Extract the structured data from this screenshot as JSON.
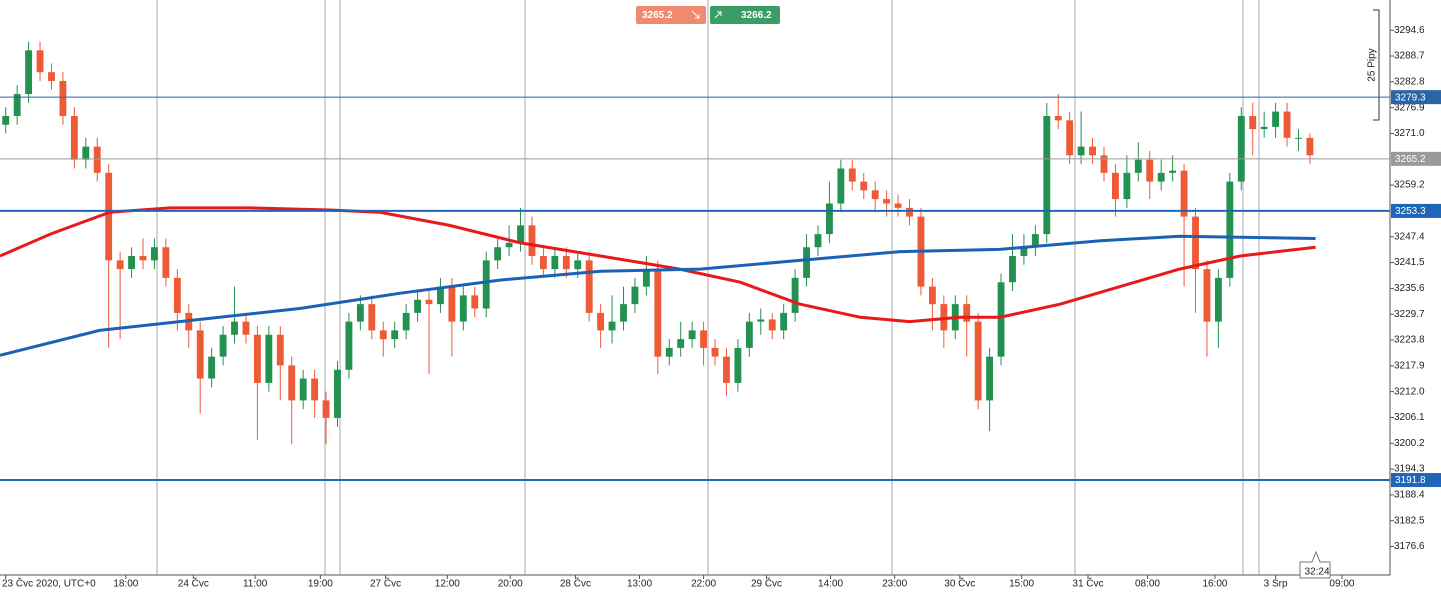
{
  "chart_data": {
    "type": "candlestick",
    "xlim": [
      -0.5,
      121
    ],
    "ylim": [
      3170.1,
      3301.5
    ],
    "up_color": "#23914f",
    "down_color": "#ee5a36",
    "yticks": [
      3294.6,
      3288.7,
      3282.8,
      3276.9,
      {
        "value": 3271.0,
        "label": "3271.0"
      },
      3259.2,
      3247.4,
      3241.5,
      3235.6,
      3229.7,
      3223.8,
      3217.9,
      {
        "value": 3212.0,
        "label": "3212.0"
      },
      3206.1,
      3200.2,
      3194.3,
      3188.4,
      3182.5,
      3176.6
    ],
    "xticks": [
      {
        "value": 0,
        "label": "23 Čvc 2020, UTC+0"
      },
      {
        "value": 10.5,
        "label": "18:00"
      },
      {
        "value": 16.4,
        "label": "24 Čvc"
      },
      {
        "value": 21.8,
        "label": "11:00"
      },
      {
        "value": 27.5,
        "label": "19:00"
      },
      {
        "value": 33.2,
        "label": "27 Čvc"
      },
      {
        "value": 38.6,
        "label": "12:00"
      },
      {
        "value": 44.1,
        "label": "20:00"
      },
      {
        "value": 49.8,
        "label": "28 Čvc"
      },
      {
        "value": 55.4,
        "label": "13:00"
      },
      {
        "value": 61.0,
        "label": "22:00"
      },
      {
        "value": 66.5,
        "label": "29 Čvc"
      },
      {
        "value": 72.1,
        "label": "14:00"
      },
      {
        "value": 77.7,
        "label": "23:00"
      },
      {
        "value": 83.4,
        "label": "30 Čvc"
      },
      {
        "value": 88.8,
        "label": "15:00"
      },
      {
        "value": 94.6,
        "label": "31 Čvc"
      },
      {
        "value": 99.8,
        "label": "08:00"
      },
      {
        "value": 105.7,
        "label": "16:00"
      },
      {
        "value": 111.0,
        "label": "3 Srp"
      },
      {
        "value": 116.8,
        "label": "09:00"
      }
    ],
    "open": [
      3273,
      3275,
      3280,
      3290,
      3285,
      3283,
      3275,
      3265,
      3268,
      3262,
      3242,
      3240,
      3243,
      3242,
      3245,
      3238,
      3230,
      3226,
      3215,
      3220,
      3225,
      3228,
      3225,
      3214,
      3225,
      3218,
      3210,
      3215,
      3210,
      3206,
      3217,
      3228,
      3232,
      3226,
      3224,
      3226,
      3230,
      3233,
      3232,
      3236,
      3228,
      3234,
      3231,
      3242,
      3245,
      3246,
      3250,
      3243,
      3240,
      3243,
      3240,
      3242,
      3230,
      3226,
      3228,
      3232,
      3236,
      3240,
      3220,
      3222,
      3224,
      3226,
      3222,
      3220,
      3214,
      3222,
      3228,
      3228.5,
      3226,
      3230,
      3238,
      3245,
      3248,
      3255,
      3263,
      3260,
      3258,
      3256,
      3255,
      3254,
      3252,
      3236,
      3232,
      3226,
      3232,
      3228,
      3210,
      3220,
      3237,
      3243,
      3245,
      3248,
      3275,
      3274,
      3266,
      3268,
      3266,
      3262,
      3256,
      3262,
      3265,
      3260,
      3262,
      3262.5,
      3252,
      3240,
      3228,
      3238,
      3260,
      3275,
      3272,
      3272.5,
      3276,
      3270,
      3270
    ],
    "high": [
      3277,
      3282,
      3292,
      3292,
      3287,
      3285,
      3277,
      3270,
      3270,
      3264,
      3244,
      3245,
      3247,
      3247,
      3247,
      3240,
      3232,
      3228,
      3222,
      3227,
      3236,
      3230,
      3227,
      3227,
      3227,
      3220,
      3217,
      3217,
      3212,
      3219,
      3230,
      3234,
      3234,
      3228,
      3228,
      3232,
      3235,
      3235,
      3238,
      3238,
      3236,
      3236,
      3244,
      3247,
      3250,
      3254,
      3252,
      3245,
      3245,
      3245,
      3244,
      3244,
      3232,
      3234,
      3236,
      3238,
      3243,
      3242,
      3224,
      3228,
      3228,
      3228,
      3224,
      3222,
      3224,
      3230,
      3231,
      3230,
      3232,
      3240,
      3248,
      3250,
      3260,
      3265,
      3265,
      3262,
      3260,
      3258,
      3257,
      3256,
      3254,
      3238,
      3234,
      3234,
      3234,
      3230,
      3222,
      3239,
      3248,
      3248,
      3250,
      3278,
      3280,
      3276,
      3276,
      3270,
      3268,
      3264,
      3266,
      3269,
      3267,
      3265,
      3266,
      3264,
      3254,
      3242,
      3240,
      3262,
      3277,
      3278,
      3276,
      3278,
      3278,
      3272,
      3271
    ],
    "low": [
      3271,
      3273,
      3278,
      3283,
      3281,
      3273,
      3263,
      3263,
      3260,
      3222,
      3224,
      3238,
      3240,
      3240,
      3236,
      3226,
      3222,
      3207,
      3213,
      3218,
      3223,
      3223,
      3201,
      3212,
      3210,
      3200,
      3208,
      3206,
      3200,
      3204,
      3215,
      3226,
      3224,
      3220,
      3222,
      3224,
      3228,
      3216,
      3230,
      3220,
      3226,
      3229,
      3229,
      3240,
      3243,
      3244,
      3241,
      3238,
      3238,
      3238,
      3238,
      3228,
      3222,
      3223,
      3226,
      3230,
      3234,
      3216,
      3218,
      3220,
      3222,
      3218,
      3218,
      3211,
      3212,
      3220,
      3225,
      3224,
      3224,
      3228,
      3236,
      3243,
      3246,
      3253,
      3258,
      3256,
      3253,
      3252,
      3252,
      3250,
      3234,
      3226,
      3222,
      3224,
      3220,
      3208,
      3203,
      3218,
      3235,
      3241,
      3243,
      3246,
      3272,
      3264,
      3264,
      3264,
      3260,
      3252,
      3254,
      3260,
      3256,
      3258,
      3260,
      3236,
      3230,
      3220,
      3222,
      3236,
      3258,
      3266,
      3270,
      3270,
      3268,
      3267,
      3264
    ],
    "close": [
      3275,
      3280,
      3290,
      3285,
      3283,
      3275,
      3265,
      3268,
      3262,
      3242,
      3240,
      3243,
      3242,
      3245,
      3238,
      3230,
      3226,
      3215,
      3220,
      3225,
      3228,
      3225,
      3214,
      3225,
      3218,
      3210,
      3215,
      3210,
      3206,
      3217,
      3228,
      3232,
      3226,
      3224,
      3226,
      3230,
      3233,
      3232,
      3236,
      3228,
      3234,
      3231,
      3242,
      3245,
      3246,
      3250,
      3243,
      3240,
      3243,
      3240,
      3242,
      3230,
      3226,
      3228,
      3232,
      3236,
      3240,
      3220,
      3222,
      3224,
      3226,
      3222,
      3220,
      3214,
      3222,
      3228,
      3228.5,
      3226,
      3230,
      3238,
      3245,
      3248,
      3255,
      3263,
      3260,
      3258,
      3256,
      3255,
      3254,
      3252,
      3236,
      3232,
      3226,
      3232,
      3228,
      3210,
      3220,
      3237,
      3243,
      3245,
      3248,
      3275,
      3274,
      3266,
      3268,
      3266,
      3262,
      3256,
      3262,
      3265,
      3260,
      3262,
      3262.5,
      3252,
      3240,
      3228,
      3238,
      3260,
      3275,
      3272,
      3272.5,
      3276,
      3270,
      3270,
      3266
    ],
    "moving_averages": [
      {
        "color": "#e8191b",
        "x": [
          -0.5,
          3.9,
          9.1,
          14.4,
          21.4,
          28.3,
          32.7,
          38.8,
          45.0,
          52.0,
          58.9,
          64.2,
          69.4,
          74.7,
          79.0,
          83.4,
          86.9,
          92.2,
          97.4,
          102.6,
          107.9,
          114.5
        ],
        "values": [
          3243,
          3248,
          3253,
          3254,
          3254,
          3253.5,
          3253,
          3250,
          3246,
          3243,
          3240,
          3237,
          3232,
          3229,
          3228,
          3229,
          3229,
          3232,
          3236,
          3240,
          3243,
          3245
        ]
      },
      {
        "color": "#1b62b5",
        "x": [
          -0.5,
          8.2,
          17.0,
          25.7,
          34.5,
          43.2,
          52.0,
          60.7,
          69.4,
          78.2,
          86.9,
          95.7,
          102.6,
          114.5
        ],
        "values": [
          3220.3,
          3226,
          3228.5,
          3231,
          3234.5,
          3237.5,
          3239.5,
          3240,
          3242,
          3244,
          3244.5,
          3246.5,
          3247.5,
          3247
        ]
      }
    ],
    "levels": [
      {
        "value": 3279.3,
        "color": "#2a64a8"
      },
      {
        "value": 3265.2,
        "color": "#9a9a9a"
      },
      {
        "value": 3253.3,
        "color": "#1f66b8"
      },
      {
        "value": 3191.8,
        "color": "#1f66b8"
      }
    ],
    "sell_price": 3265.2,
    "buy_price": 3266.2,
    "pip_label": "25 Pipy",
    "countdown": "32:24"
  }
}
